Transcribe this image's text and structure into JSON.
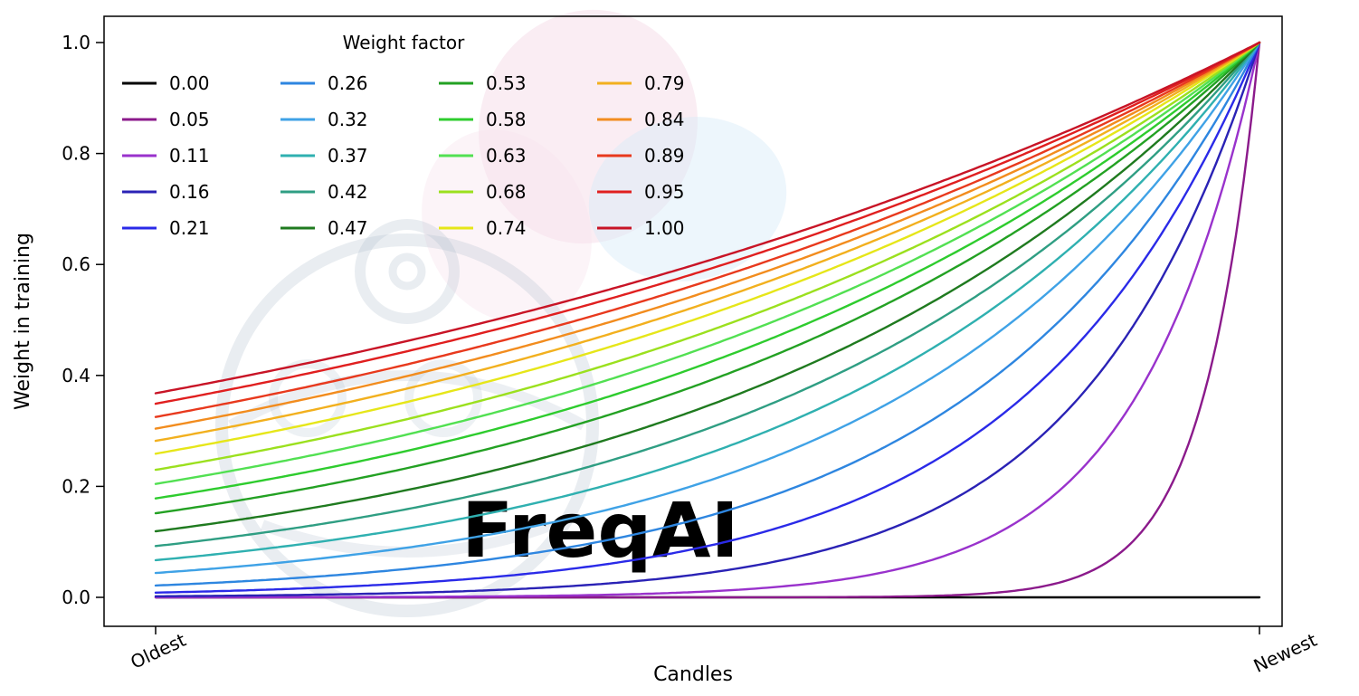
{
  "watermark": {
    "text": "FreqAI"
  },
  "chart_data": {
    "type": "line",
    "title": "",
    "xlabel": "Candles",
    "ylabel": "Weight in training",
    "x_tick_labels": [
      "Oldest",
      "Newest"
    ],
    "x_tick_rotation_deg": -25,
    "y_ticks": [
      0.0,
      0.2,
      0.4,
      0.6,
      0.8,
      1.0
    ],
    "y_tick_labels": [
      "0.0",
      "0.2",
      "0.4",
      "0.6",
      "0.8",
      "1.0"
    ],
    "ylim": [
      0,
      1
    ],
    "grid": false,
    "curve_formula": "weight(x) = exp((x - 1) / weight_factor) for x in [0,1]; weight_factor = 0 gives a flat line at 0",
    "legend": {
      "title": "Weight factor",
      "position": "upper left",
      "columns": 4,
      "rows": 5,
      "order": "column-major"
    },
    "sample_x": [
      0,
      0.25,
      0.5,
      0.75,
      1
    ],
    "series": [
      {
        "name": "0.00",
        "factor": 0.0,
        "color": "#000000",
        "values": [
          0,
          0,
          0,
          0,
          0
        ]
      },
      {
        "name": "0.05",
        "factor": 0.05,
        "color": "#8b1a8b",
        "values": [
          0.0,
          0.0,
          0.0,
          0.0067,
          1.0
        ]
      },
      {
        "name": "0.11",
        "factor": 0.11,
        "color": "#9932cc",
        "values": [
          0.0001,
          0.0011,
          0.0106,
          0.1034,
          1.0
        ]
      },
      {
        "name": "0.16",
        "factor": 0.16,
        "color": "#2a22b5",
        "values": [
          0.0019,
          0.0092,
          0.0439,
          0.2096,
          1.0
        ]
      },
      {
        "name": "0.21",
        "factor": 0.21,
        "color": "#2a2ae8",
        "values": [
          0.0086,
          0.0281,
          0.0924,
          0.3042,
          1.0
        ]
      },
      {
        "name": "0.26",
        "factor": 0.26,
        "color": "#2e86e0",
        "values": [
          0.0213,
          0.056,
          0.1461,
          0.3823,
          1.0
        ]
      },
      {
        "name": "0.32",
        "factor": 0.32,
        "color": "#3fa2e6",
        "values": [
          0.0439,
          0.096,
          0.2096,
          0.4578,
          1.0
        ]
      },
      {
        "name": "0.37",
        "factor": 0.37,
        "color": "#2fb0b0",
        "values": [
          0.067,
          0.1316,
          0.2589,
          0.5088,
          1.0
        ]
      },
      {
        "name": "0.42",
        "factor": 0.42,
        "color": "#2f9e83",
        "values": [
          0.0924,
          0.1677,
          0.3042,
          0.5515,
          1.0
        ]
      },
      {
        "name": "0.47",
        "factor": 0.47,
        "color": "#1f7a1f",
        "values": [
          0.1191,
          0.2027,
          0.3451,
          0.5874,
          1.0
        ]
      },
      {
        "name": "0.53",
        "factor": 0.53,
        "color": "#23a123",
        "values": [
          0.1516,
          0.243,
          0.3894,
          0.6239,
          1.0
        ]
      },
      {
        "name": "0.58",
        "factor": 0.58,
        "color": "#2ecc2e",
        "values": [
          0.1784,
          0.2744,
          0.4223,
          0.6498,
          1.0
        ]
      },
      {
        "name": "0.63",
        "factor": 0.63,
        "color": "#52e052",
        "values": [
          0.2045,
          0.3042,
          0.4521,
          0.6724,
          1.0
        ]
      },
      {
        "name": "0.68",
        "factor": 0.68,
        "color": "#9be01e",
        "values": [
          0.2298,
          0.3319,
          0.4795,
          0.6922,
          1.0
        ]
      },
      {
        "name": "0.74",
        "factor": 0.74,
        "color": "#e6e619",
        "values": [
          0.2589,
          0.363,
          0.5088,
          0.7133,
          1.0
        ]
      },
      {
        "name": "0.79",
        "factor": 0.79,
        "color": "#f2b01e",
        "values": [
          0.282,
          0.3869,
          0.5311,
          0.7288,
          1.0
        ]
      },
      {
        "name": "0.84",
        "factor": 0.84,
        "color": "#f28c1e",
        "values": [
          0.3042,
          0.4094,
          0.5515,
          0.7425,
          1.0
        ]
      },
      {
        "name": "0.89",
        "factor": 0.89,
        "color": "#e8391d",
        "values": [
          0.3251,
          0.4305,
          0.5701,
          0.7551,
          1.0
        ]
      },
      {
        "name": "0.95",
        "factor": 0.95,
        "color": "#e01f1f",
        "values": [
          0.3489,
          0.454,
          0.5909,
          0.7687,
          1.0
        ]
      },
      {
        "name": "1.00",
        "factor": 1.0,
        "color": "#c81426",
        "values": [
          0.3679,
          0.4724,
          0.6065,
          0.7788,
          1.0
        ]
      }
    ]
  }
}
